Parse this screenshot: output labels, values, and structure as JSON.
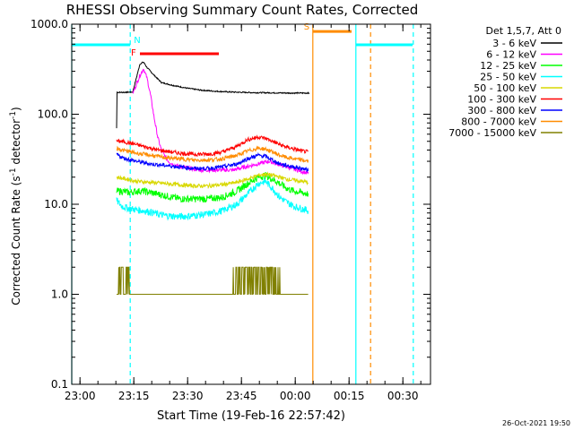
{
  "chart_data": {
    "type": "line",
    "title": "RHESSI Observing Summary Count Rates, Corrected",
    "xlabel": "Start Time (19-Feb-16 22:57:42)",
    "ylabel_main": "Corrected Count Rate (s",
    "ylabel_sup1": "-1",
    "ylabel_mid": " detector",
    "ylabel_sup2": "-1",
    "ylabel_end": ")",
    "yscale": "log",
    "ylim": [
      0.1,
      1000
    ],
    "xlim": [
      "22:57:42",
      "00:37:42"
    ],
    "y_tick_labels": [
      "1000.0",
      "100.0",
      "10.0",
      "1.0",
      "0.1"
    ],
    "x_ticks": [
      {
        "t": "23:00",
        "min": 2.3
      },
      {
        "t": "23:15",
        "min": 17.3
      },
      {
        "t": "23:30",
        "min": 32.3
      },
      {
        "t": "23:45",
        "min": 47.3
      },
      {
        "t": "00:00",
        "min": 62.3
      },
      {
        "t": "00:15",
        "min": 77.3
      },
      {
        "t": "00:30",
        "min": 92.3
      }
    ],
    "legend_header": "Det 1,5,7, Att 0",
    "legend_position": "right",
    "timestamp": "26-Oct-2021 19:50",
    "series": [
      {
        "name": "3 - 6 keV",
        "color": "#000000",
        "x": [
          12.5,
          12.6,
          14,
          17,
          19,
          20,
          21,
          23,
          25,
          28,
          32,
          36,
          40,
          45,
          50,
          55,
          60,
          66,
          66.3
        ],
        "y": [
          70,
          175,
          175,
          176,
          360,
          380,
          330,
          270,
          225,
          210,
          195,
          185,
          180,
          176,
          174,
          173,
          172,
          172,
          170
        ]
      },
      {
        "name": "6 - 12 keV",
        "color": "#ff00ff",
        "x": [
          17,
          19,
          20,
          21,
          22,
          23,
          24,
          25,
          26,
          27,
          28,
          29,
          31,
          33,
          36,
          40,
          45,
          50,
          55,
          60,
          66
        ],
        "y": [
          170,
          270,
          320,
          250,
          160,
          90,
          55,
          40,
          34,
          30,
          28,
          27,
          26,
          25,
          24,
          24,
          24,
          27,
          30,
          26,
          22
        ]
      },
      {
        "name": "12 - 25 keV",
        "color": "#00ff00",
        "x": [
          12.5,
          14,
          16,
          18,
          20,
          22,
          24,
          26,
          28,
          30,
          34,
          38,
          42,
          46,
          49,
          52,
          54,
          56,
          58,
          60,
          62,
          64,
          66
        ],
        "y": [
          14,
          14,
          13.5,
          14,
          14,
          13.5,
          13,
          12.5,
          12,
          11.5,
          11.5,
          11.5,
          12,
          14,
          17,
          20,
          21,
          19,
          17,
          15,
          14,
          13.5,
          13
        ]
      },
      {
        "name": "25 - 50 keV",
        "color": "#00ffff",
        "x": [
          12.5,
          14,
          16,
          18,
          20,
          22,
          24,
          26,
          28,
          30,
          34,
          38,
          42,
          46,
          49,
          52,
          54,
          56,
          58,
          60,
          62,
          64,
          66
        ],
        "y": [
          11,
          9.5,
          9,
          8.7,
          8.5,
          8.2,
          7.8,
          7.5,
          7.4,
          7.3,
          7.5,
          7.8,
          8.5,
          10,
          13,
          17,
          18,
          15,
          12,
          10.5,
          9.5,
          9,
          8.5
        ]
      },
      {
        "name": "50 - 100 keV",
        "color": "#d8d800",
        "x": [
          12.5,
          14,
          18,
          22,
          26,
          30,
          34,
          38,
          42,
          46,
          49,
          52,
          54,
          56,
          58,
          60,
          62,
          64,
          66
        ],
        "y": [
          20,
          19.5,
          18,
          17.5,
          17,
          16.5,
          16,
          16,
          16.5,
          17.5,
          19,
          21,
          21.5,
          21,
          20,
          19,
          18.5,
          18,
          17.5
        ]
      },
      {
        "name": "100 - 300 keV",
        "color": "#ff0000",
        "x": [
          12.5,
          14,
          16,
          18,
          20,
          22,
          24,
          26,
          28,
          30,
          34,
          38,
          42,
          46,
          49,
          52,
          54,
          56,
          58,
          60,
          62,
          64,
          66
        ],
        "y": [
          50,
          50,
          48,
          46,
          44,
          42,
          40,
          39,
          38,
          37,
          36,
          36,
          38,
          44,
          52,
          56,
          54,
          50,
          46,
          43,
          41,
          39,
          38
        ]
      },
      {
        "name": "300 - 800 keV",
        "color": "#0000ff",
        "x": [
          12.5,
          14,
          18,
          22,
          26,
          30,
          34,
          38,
          42,
          46,
          49,
          52,
          54,
          56,
          58,
          60,
          62,
          64,
          66
        ],
        "y": [
          36,
          33,
          30,
          28,
          27,
          26,
          25,
          25,
          26,
          28,
          32,
          35,
          34,
          31,
          28,
          27,
          26,
          25,
          24
        ]
      },
      {
        "name": "800 - 7000 keV",
        "color": "#ff8c00",
        "x": [
          12.5,
          14,
          18,
          22,
          26,
          30,
          34,
          38,
          42,
          46,
          49,
          52,
          54,
          56,
          58,
          60,
          62,
          64,
          66
        ],
        "y": [
          42,
          40,
          37,
          35,
          33,
          32,
          31,
          31,
          32,
          35,
          39,
          42,
          41,
          38,
          35,
          33,
          32,
          31,
          30
        ]
      },
      {
        "name": "7000 - 15000 keV",
        "color": "#808000",
        "x": [
          12.5,
          13,
          20,
          30,
          40,
          45,
          50,
          55,
          60,
          66
        ],
        "y": [
          1.0,
          1.0,
          1.0,
          1.0,
          1.0,
          1.0,
          1.0,
          1.0,
          1.0,
          1.0
        ]
      }
    ],
    "flag_bars": [
      {
        "label": "N",
        "color": "#00ffff",
        "segments": [
          [
            0,
            16.3
          ],
          [
            79.2,
            95
          ]
        ],
        "level": 590
      },
      {
        "label": "F",
        "color": "#ff0000",
        "segments": [
          [
            19,
            41
          ]
        ],
        "level": 470
      },
      {
        "label": "S",
        "color": "#ff8c00",
        "segments": [
          [
            67.2,
            78
          ]
        ],
        "level": 830
      }
    ],
    "vertical_lines": [
      {
        "min": 0,
        "color": "#00ffff",
        "style": "solid"
      },
      {
        "min": 16.3,
        "color": "#00ffff",
        "style": "dashed"
      },
      {
        "min": 67.2,
        "color": "#ff8c00",
        "style": "solid"
      },
      {
        "min": 79.2,
        "color": "#00ffff",
        "style": "solid"
      },
      {
        "min": 83.3,
        "color": "#ff8c00",
        "style": "dashed"
      },
      {
        "min": 95.2,
        "color": "#00ffff",
        "style": "dashed"
      }
    ]
  }
}
